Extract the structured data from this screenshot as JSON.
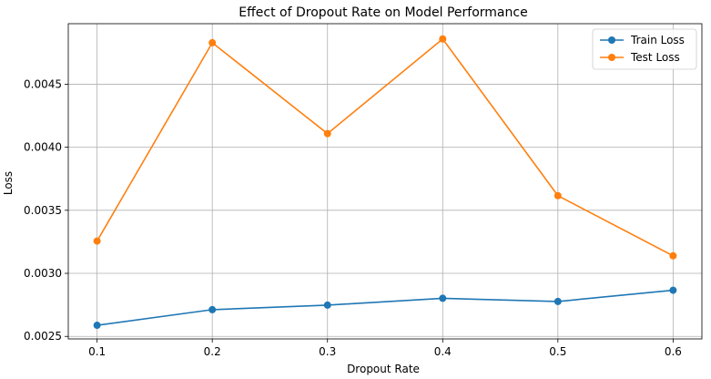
{
  "chart_data": {
    "type": "line",
    "title": "Effect of Dropout Rate on Model Performance",
    "xlabel": "Dropout Rate",
    "ylabel": "Loss",
    "x": [
      0.1,
      0.2,
      0.3,
      0.4,
      0.5,
      0.6
    ],
    "x_tick_labels": [
      "0.1",
      "0.2",
      "0.3",
      "0.4",
      "0.5",
      "0.6"
    ],
    "xlim": [
      0.075,
      0.625
    ],
    "ylim": [
      0.00248,
      0.00498
    ],
    "y_ticks": [
      0.0025,
      0.003,
      0.0035,
      0.004,
      0.0045
    ],
    "y_tick_labels": [
      "0.0025",
      "0.0030",
      "0.0035",
      "0.0040",
      "0.0045"
    ],
    "grid": true,
    "legend_position": "top-right",
    "series": [
      {
        "name": "Train Loss",
        "color": "#1f77b4",
        "values": [
          0.002588,
          0.002712,
          0.002748,
          0.002802,
          0.002777,
          0.002866
        ]
      },
      {
        "name": "Test Loss",
        "color": "#ff7f0e",
        "values": [
          0.003256,
          0.004829,
          0.004108,
          0.004859,
          0.003616,
          0.003139
        ]
      }
    ]
  }
}
